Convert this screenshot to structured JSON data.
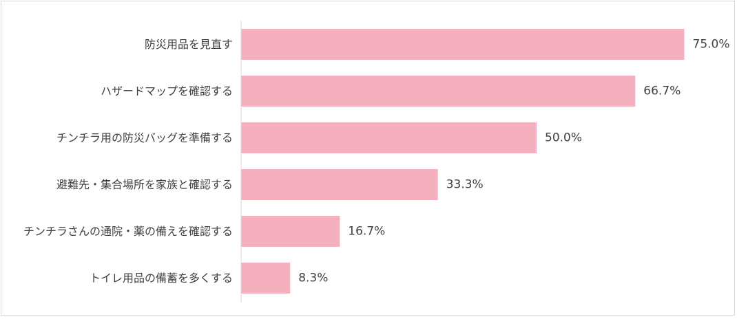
{
  "chart_data": {
    "type": "bar",
    "orientation": "horizontal",
    "categories": [
      "防災用品を見直す",
      "ハザードマップを確認する",
      "チンチラ用の防災バッグを準備する",
      "避難先・集合場所を家族と確認する",
      "チンチラさんの通院・薬の備えを確認する",
      "トイレ用品の備蓄を多くする"
    ],
    "values": [
      75.0,
      66.7,
      50.0,
      33.3,
      16.7,
      8.3
    ],
    "value_labels": [
      "75.0%",
      "66.7%",
      "50.0%",
      "33.3%",
      "16.7%",
      "8.3%"
    ],
    "unit": "%",
    "xlim": [
      0,
      100
    ],
    "grid": false,
    "legend": "none",
    "colors": {
      "bar": "#f4b0bf",
      "axis": "#d9d9d9",
      "text": "#404040"
    }
  }
}
